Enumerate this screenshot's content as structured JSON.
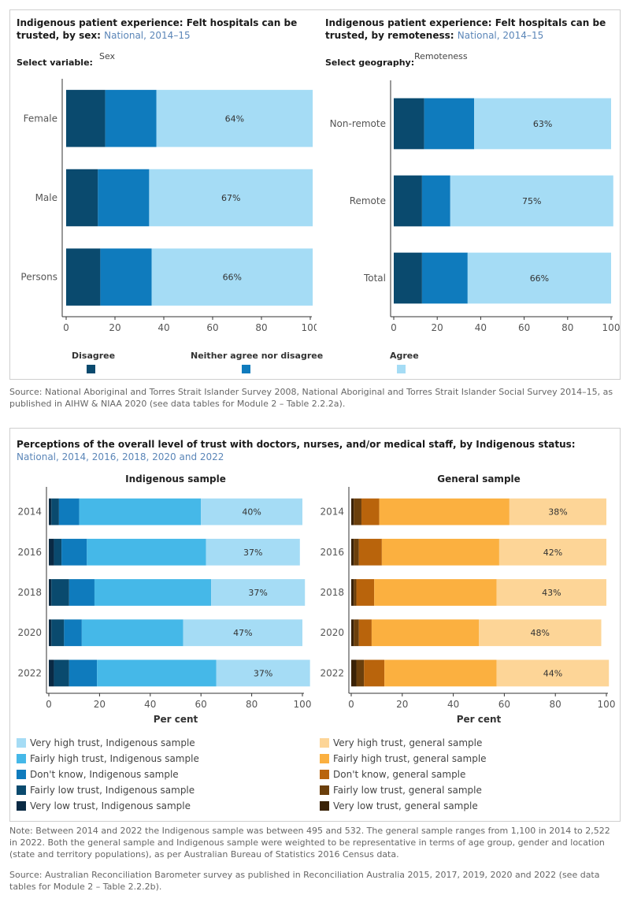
{
  "panel1": {
    "left_title": "Indigenous patient experience: Felt hospitals can be trusted, by sex:",
    "left_sub": "National, 2014–15",
    "left_select_label": "Select variable:",
    "left_select_value": "Sex",
    "right_title": "Indigenous patient experience: Felt hospitals can be trusted, by remoteness:",
    "right_sub": "National, 2014–15",
    "right_select_label": "Select geography:",
    "right_select_value": "Remoteness",
    "legend": [
      {
        "label": "Disagree",
        "color": "#0a4a6e"
      },
      {
        "label": "Neither agree nor disagree",
        "color": "#0f7bbd"
      },
      {
        "label": "Agree",
        "color": "#a5dcf5"
      }
    ]
  },
  "source1": "Source: National Aboriginal and Torres Strait Islander Survey 2008, National Aboriginal and Torres Strait Islander Social Survey 2014–15, as published in AIHW & NIAA 2020 (see data tables for Module 2 – Table 2.2.2a).",
  "panel2": {
    "title": "Perceptions of the overall level of trust with doctors, nurses, and/or medical staff, by Indigenous status:",
    "title_sub": "National, 2014, 2016, 2018, 2020 and 2022",
    "legend_left": [
      {
        "label": "Very high trust, Indigenous sample",
        "color": "#a5dcf5"
      },
      {
        "label": "Fairly high trust, Indigenous sample",
        "color": "#45b8e8"
      },
      {
        "label": "Don't know, Indigenous sample",
        "color": "#0f7bbd"
      },
      {
        "label": "Fairly low trust, Indigenous sample",
        "color": "#0a4a6e"
      },
      {
        "label": "Very low trust, Indigenous sample",
        "color": "#0a2a44"
      }
    ],
    "legend_right": [
      {
        "label": "Very high trust, general sample",
        "color": "#fdd597"
      },
      {
        "label": "Fairly high trust, general sample",
        "color": "#fbb040"
      },
      {
        "label": "Don't know, general sample",
        "color": "#b9640c"
      },
      {
        "label": "Fairly low trust, general sample",
        "color": "#6b3f0c"
      },
      {
        "label": "Very low trust, general sample",
        "color": "#3a2207"
      }
    ]
  },
  "note2": "Note: Between 2014 and 2022 the Indigenous sample was between 495 and 532. The general sample ranges from 1,100 in 2014 to 2,522 in 2022. Both the general sample and Indigenous sample were weighted to be representative in terms of age group, gender and location (state and territory populations), as per Australian Bureau of Statistics 2016 Census data.",
  "source2": "Source: Australian Reconciliation Barometer survey as published in Reconciliation Australia 2015, 2017, 2019, 2020 and 2022 (see data tables for Module 2 – Table 2.2.2b).",
  "chart_data": [
    {
      "type": "bar",
      "orientation": "horizontal",
      "stacked": true,
      "categories": [
        "Female",
        "Male",
        "Persons"
      ],
      "series": [
        {
          "name": "Disagree",
          "values": [
            16,
            13,
            14
          ],
          "color": "#0a4a6e"
        },
        {
          "name": "Neither agree nor disagree",
          "values": [
            21,
            21,
            21
          ],
          "color": "#0f7bbd"
        },
        {
          "name": "Agree",
          "values": [
            64,
            67,
            66
          ],
          "color": "#a5dcf5",
          "labels": [
            "64%",
            "67%",
            "66%"
          ]
        }
      ],
      "xlim": [
        0,
        100
      ],
      "xticks": [
        "0",
        "20",
        "40",
        "60",
        "80",
        "100"
      ]
    },
    {
      "type": "bar",
      "orientation": "horizontal",
      "stacked": true,
      "categories": [
        "Non-remote",
        "Remote",
        "Total"
      ],
      "series": [
        {
          "name": "Disagree",
          "values": [
            14,
            13,
            13
          ],
          "color": "#0a4a6e"
        },
        {
          "name": "Neither agree nor disagree",
          "values": [
            23,
            13,
            21
          ],
          "color": "#0f7bbd"
        },
        {
          "name": "Agree",
          "values": [
            63,
            75,
            66
          ],
          "color": "#a5dcf5",
          "labels": [
            "63%",
            "75%",
            "66%"
          ]
        }
      ],
      "xlim": [
        0,
        100
      ],
      "xticks": [
        "0",
        "20",
        "40",
        "60",
        "80",
        "100"
      ]
    },
    {
      "type": "bar",
      "orientation": "horizontal",
      "stacked": true,
      "title": "Indigenous sample",
      "xlabel": "Per cent",
      "categories": [
        "2014",
        "2016",
        "2018",
        "2020",
        "2022"
      ],
      "series": [
        {
          "name": "Very low trust, Indigenous sample",
          "values": [
            1,
            2,
            1,
            1,
            2
          ],
          "color": "#0a2a44"
        },
        {
          "name": "Fairly low trust, Indigenous sample",
          "values": [
            3,
            3,
            7,
            5,
            6
          ],
          "color": "#0a4a6e"
        },
        {
          "name": "Don't know, Indigenous sample",
          "values": [
            8,
            10,
            10,
            7,
            11
          ],
          "color": "#0f7bbd"
        },
        {
          "name": "Fairly high trust, Indigenous sample",
          "values": [
            48,
            47,
            46,
            40,
            47
          ],
          "color": "#45b8e8"
        },
        {
          "name": "Very high trust, Indigenous sample",
          "values": [
            40,
            37,
            37,
            47,
            37
          ],
          "color": "#a5dcf5",
          "labels": [
            "40%",
            "37%",
            "37%",
            "47%",
            "37%"
          ]
        }
      ],
      "xlim": [
        0,
        100
      ],
      "xticks": [
        "0",
        "20",
        "40",
        "60",
        "80",
        "100"
      ]
    },
    {
      "type": "bar",
      "orientation": "horizontal",
      "stacked": true,
      "title": "General sample",
      "xlabel": "Per cent",
      "categories": [
        "2014",
        "2016",
        "2018",
        "2020",
        "2022"
      ],
      "series": [
        {
          "name": "Very low trust, general sample",
          "values": [
            1,
            1,
            1,
            1,
            2
          ],
          "color": "#3a2207"
        },
        {
          "name": "Fairly low trust, general sample",
          "values": [
            3,
            2,
            1,
            2,
            3
          ],
          "color": "#6b3f0c"
        },
        {
          "name": "Don't know, general sample",
          "values": [
            7,
            9,
            7,
            5,
            8
          ],
          "color": "#b9640c"
        },
        {
          "name": "Fairly high trust, general sample",
          "values": [
            51,
            46,
            48,
            42,
            44
          ],
          "color": "#fbb040"
        },
        {
          "name": "Very high trust, general sample",
          "values": [
            38,
            42,
            43,
            48,
            44
          ],
          "color": "#fdd597",
          "labels": [
            "38%",
            "42%",
            "43%",
            "48%",
            "44%"
          ]
        }
      ],
      "xlim": [
        0,
        100
      ],
      "xticks": [
        "0",
        "20",
        "40",
        "60",
        "80",
        "100"
      ]
    }
  ]
}
